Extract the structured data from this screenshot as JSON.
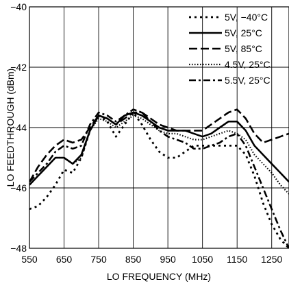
{
  "chart_data": {
    "type": "line",
    "title": "",
    "xlabel": "LO FREQUENCY (MHz)",
    "ylabel": "LO FEEDTHROUGH (dBm)",
    "xlim": [
      550,
      1300
    ],
    "ylim": [
      -48,
      -40
    ],
    "xticks": [
      550,
      650,
      750,
      850,
      950,
      1050,
      1150,
      1250
    ],
    "xtick_labels": [
      "550",
      "650",
      "750",
      "850",
      "950",
      "1050",
      "1150",
      "1250"
    ],
    "yticks": [
      -48,
      -46,
      -44,
      -42,
      -40
    ],
    "ytick_labels": [
      "−48",
      "−46",
      "−44",
      "−42",
      "−40"
    ],
    "grid": true,
    "legend_position": "top-right",
    "series": [
      {
        "name": "5V, −40°C",
        "style": "dotted-heavy",
        "x": [
          550,
          575,
          600,
          625,
          650,
          675,
          700,
          725,
          750,
          775,
          800,
          825,
          850,
          875,
          900,
          925,
          950,
          975,
          1000,
          1025,
          1050,
          1075,
          1100,
          1125,
          1150,
          1175,
          1200,
          1225,
          1250,
          1275,
          1300
        ],
        "y": [
          -46.7,
          -46.6,
          -46.3,
          -45.9,
          -45.4,
          -45.5,
          -45.0,
          -44.1,
          -43.6,
          -43.8,
          -44.3,
          -43.9,
          -43.5,
          -43.9,
          -44.4,
          -44.8,
          -45.0,
          -45.0,
          -44.8,
          -44.6,
          -44.6,
          -44.6,
          -44.6,
          -44.6,
          -44.6,
          -44.9,
          -45.6,
          -46.5,
          -47.2,
          -47.7,
          -48.0
        ]
      },
      {
        "name": "5V, 25°C",
        "style": "solid",
        "x": [
          550,
          575,
          600,
          625,
          650,
          675,
          700,
          725,
          750,
          775,
          800,
          825,
          850,
          875,
          900,
          925,
          950,
          975,
          1000,
          1025,
          1050,
          1075,
          1100,
          1125,
          1150,
          1175,
          1200,
          1225,
          1250,
          1275,
          1300
        ],
        "y": [
          -45.9,
          -45.6,
          -45.3,
          -45.0,
          -45.0,
          -45.2,
          -44.9,
          -44.1,
          -43.6,
          -43.7,
          -43.9,
          -43.6,
          -43.5,
          -43.6,
          -43.8,
          -44.0,
          -44.1,
          -44.1,
          -44.1,
          -44.2,
          -44.3,
          -44.2,
          -44.0,
          -43.8,
          -43.8,
          -44.1,
          -44.6,
          -44.9,
          -45.2,
          -45.5,
          -45.8
        ]
      },
      {
        "name": "5V, 85°C",
        "style": "dashed",
        "x": [
          550,
          575,
          600,
          625,
          650,
          675,
          700,
          725,
          750,
          775,
          800,
          825,
          850,
          875,
          900,
          925,
          950,
          975,
          1000,
          1025,
          1050,
          1075,
          1100,
          1125,
          1150,
          1175,
          1200,
          1225,
          1250,
          1275,
          1300
        ],
        "y": [
          -45.8,
          -45.3,
          -44.9,
          -44.6,
          -44.4,
          -44.5,
          -44.4,
          -44.0,
          -43.6,
          -43.7,
          -43.9,
          -43.7,
          -43.5,
          -43.5,
          -43.7,
          -43.9,
          -44.0,
          -44.1,
          -44.1,
          -44.1,
          -44.1,
          -43.9,
          -43.7,
          -43.5,
          -43.4,
          -43.7,
          -44.2,
          -44.5,
          -44.4,
          -44.3,
          -44.2
        ]
      },
      {
        "name": "4.5V, 25°C",
        "style": "dotted",
        "x": [
          550,
          575,
          600,
          625,
          650,
          675,
          700,
          725,
          750,
          775,
          800,
          825,
          850,
          875,
          900,
          925,
          950,
          975,
          1000,
          1025,
          1050,
          1075,
          1100,
          1125,
          1150,
          1175,
          1200,
          1225,
          1250,
          1275,
          1300
        ],
        "y": [
          -45.9,
          -45.6,
          -45.3,
          -45.0,
          -45.0,
          -45.2,
          -45.0,
          -44.1,
          -43.7,
          -43.8,
          -44.0,
          -43.8,
          -43.6,
          -43.7,
          -43.9,
          -44.1,
          -44.2,
          -44.2,
          -44.3,
          -44.4,
          -44.4,
          -44.3,
          -44.2,
          -44.1,
          -44.2,
          -44.4,
          -44.9,
          -45.2,
          -45.5,
          -45.9,
          -46.2
        ]
      },
      {
        "name": "5.5V, 25°C",
        "style": "dash-dot",
        "x": [
          550,
          575,
          600,
          625,
          650,
          675,
          700,
          725,
          750,
          775,
          800,
          825,
          850,
          875,
          900,
          925,
          950,
          975,
          1000,
          1025,
          1050,
          1075,
          1100,
          1125,
          1150,
          1175,
          1200,
          1225,
          1250,
          1275,
          1300
        ],
        "y": [
          -45.8,
          -45.5,
          -45.2,
          -44.8,
          -44.6,
          -44.7,
          -44.6,
          -43.9,
          -43.5,
          -43.6,
          -43.8,
          -43.6,
          -43.4,
          -43.5,
          -43.8,
          -44.1,
          -44.3,
          -44.4,
          -44.5,
          -44.7,
          -44.7,
          -44.6,
          -44.5,
          -44.3,
          -44.2,
          -44.6,
          -45.3,
          -46.0,
          -46.7,
          -47.4,
          -48.0
        ]
      }
    ]
  }
}
